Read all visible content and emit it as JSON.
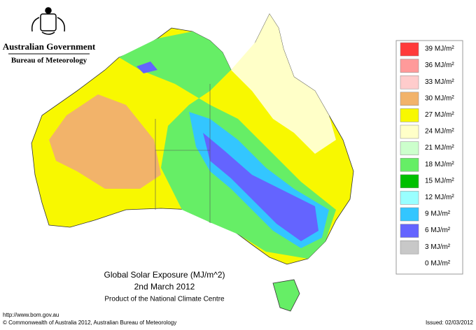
{
  "header": {
    "title": "Australian Government",
    "subtitle": "Bureau of Meteorology"
  },
  "map": {
    "title": "Global Solar Exposure (MJ/m^2)",
    "date": "2nd March 2012",
    "credit": "Product of the National Climate Centre"
  },
  "legend": {
    "labels": [
      "39 MJ/m²",
      "36 MJ/m²",
      "33 MJ/m²",
      "30 MJ/m²",
      "27 MJ/m²",
      "24 MJ/m²",
      "21 MJ/m²",
      "18 MJ/m²",
      "15 MJ/m²",
      "12 MJ/m²",
      "9 MJ/m²",
      "6 MJ/m²",
      "3 MJ/m²",
      "0 MJ/m²"
    ],
    "colors": [
      "#ff3b3b",
      "#ff9a9a",
      "#ffcccc",
      "#f2b36a",
      "#f8f800",
      "#ffffc8",
      "#ccffcc",
      "#66ee66",
      "#00c000",
      "#99ffff",
      "#33c6ff",
      "#6464ff",
      "#c8c8c8"
    ]
  },
  "footer": {
    "url": "http://www.bom.gov.au",
    "copyright": "© Commonwealth of Australia 2012, Australian Bureau of Meteorology",
    "issued": "Issued: 02/03/2012"
  }
}
